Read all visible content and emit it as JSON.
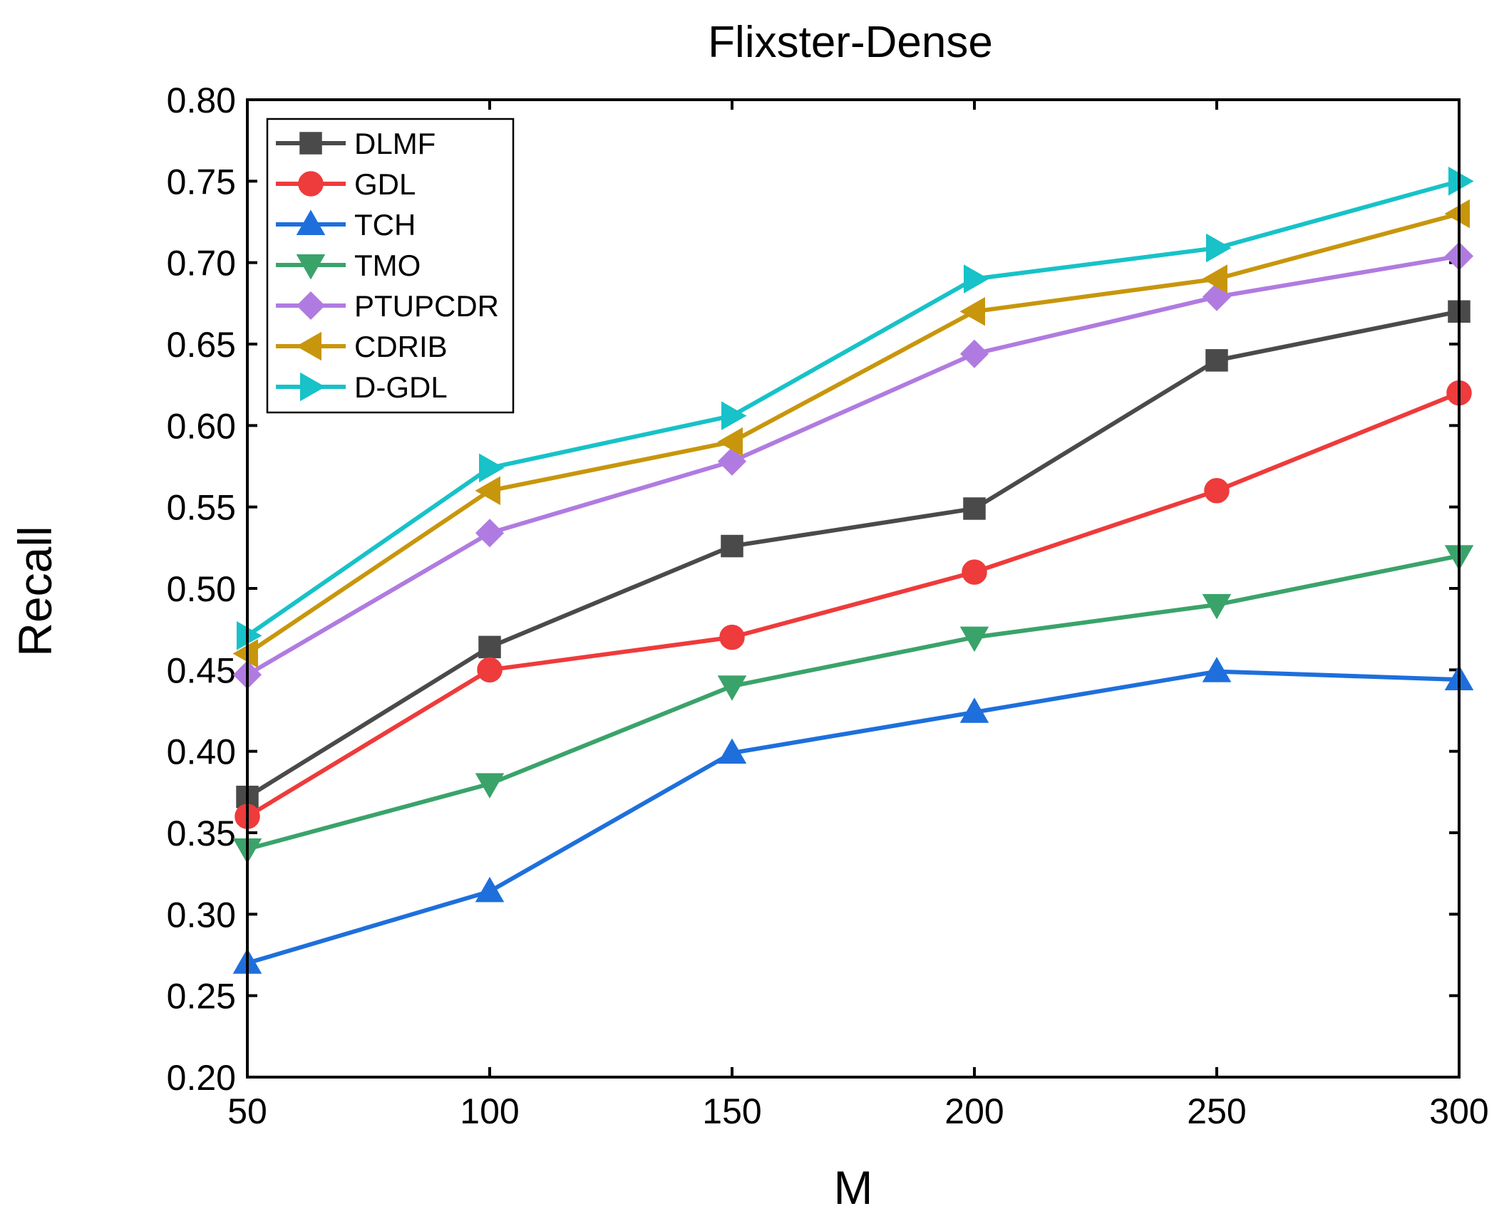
{
  "chart_data": {
    "type": "line",
    "title": "Flixster-Dense",
    "xlabel": "M",
    "ylabel": "Recall",
    "x": [
      50,
      100,
      150,
      200,
      250,
      300
    ],
    "xlim": [
      50,
      300
    ],
    "ylim": [
      0.2,
      0.8
    ],
    "xticks": [
      50,
      100,
      150,
      200,
      250,
      300
    ],
    "xtick_labels": [
      "50",
      "100",
      "150",
      "200",
      "250",
      "300"
    ],
    "yticks": [
      0.2,
      0.25,
      0.3,
      0.35,
      0.4,
      0.45,
      0.5,
      0.55,
      0.6,
      0.65,
      0.7,
      0.75,
      0.8
    ],
    "ytick_labels": [
      "0.20",
      "0.25",
      "0.30",
      "0.35",
      "0.40",
      "0.45",
      "0.50",
      "0.55",
      "0.60",
      "0.65",
      "0.70",
      "0.75",
      "0.80"
    ],
    "grid": false,
    "legend_position": "top-left",
    "series": [
      {
        "name": "DLMF",
        "color": "#4a4a4a",
        "marker": "square",
        "values": [
          0.372,
          0.464,
          0.526,
          0.549,
          0.64,
          0.67
        ]
      },
      {
        "name": "GDL",
        "color": "#ee3b3b",
        "marker": "circle",
        "values": [
          0.36,
          0.45,
          0.47,
          0.51,
          0.56,
          0.62
        ]
      },
      {
        "name": "TCH",
        "color": "#1e6fdc",
        "marker": "triangle-up",
        "values": [
          0.27,
          0.314,
          0.399,
          0.424,
          0.449,
          0.444
        ]
      },
      {
        "name": "TMO",
        "color": "#3aa36a",
        "marker": "triangle-down",
        "values": [
          0.34,
          0.38,
          0.44,
          0.47,
          0.49,
          0.52
        ]
      },
      {
        "name": "PTUPCDR",
        "color": "#b07be0",
        "marker": "diamond",
        "values": [
          0.447,
          0.534,
          0.578,
          0.644,
          0.679,
          0.704
        ]
      },
      {
        "name": "CDRIB",
        "color": "#c8960c",
        "marker": "triangle-left",
        "values": [
          0.46,
          0.56,
          0.59,
          0.67,
          0.69,
          0.73
        ]
      },
      {
        "name": "D-GDL",
        "color": "#17c2c8",
        "marker": "triangle-right",
        "values": [
          0.471,
          0.574,
          0.606,
          0.69,
          0.709,
          0.75
        ]
      }
    ]
  }
}
